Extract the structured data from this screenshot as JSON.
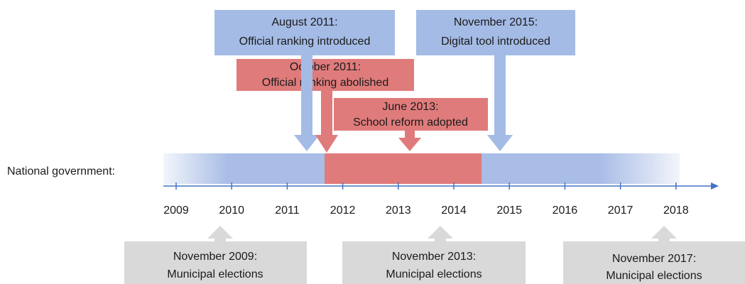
{
  "row_label": "National government:",
  "years": [
    "2009",
    "2010",
    "2011",
    "2012",
    "2013",
    "2014",
    "2015",
    "2016",
    "2017",
    "2018"
  ],
  "events": [
    {
      "date": "August 2011:",
      "text": "Official ranking introduced"
    },
    {
      "date": "November 2015:",
      "text": "Digital tool introduced"
    },
    {
      "date": "October 2011:",
      "text": "Official ranking abolished"
    },
    {
      "date": "June 2013:",
      "text": "School reform adopted"
    }
  ],
  "elections": [
    {
      "date": "November 2009:",
      "text": "Municipal elections"
    },
    {
      "date": "November 2013:",
      "text": "Municipal elections"
    },
    {
      "date": "November 2017:",
      "text": "Municipal elections"
    }
  ]
}
